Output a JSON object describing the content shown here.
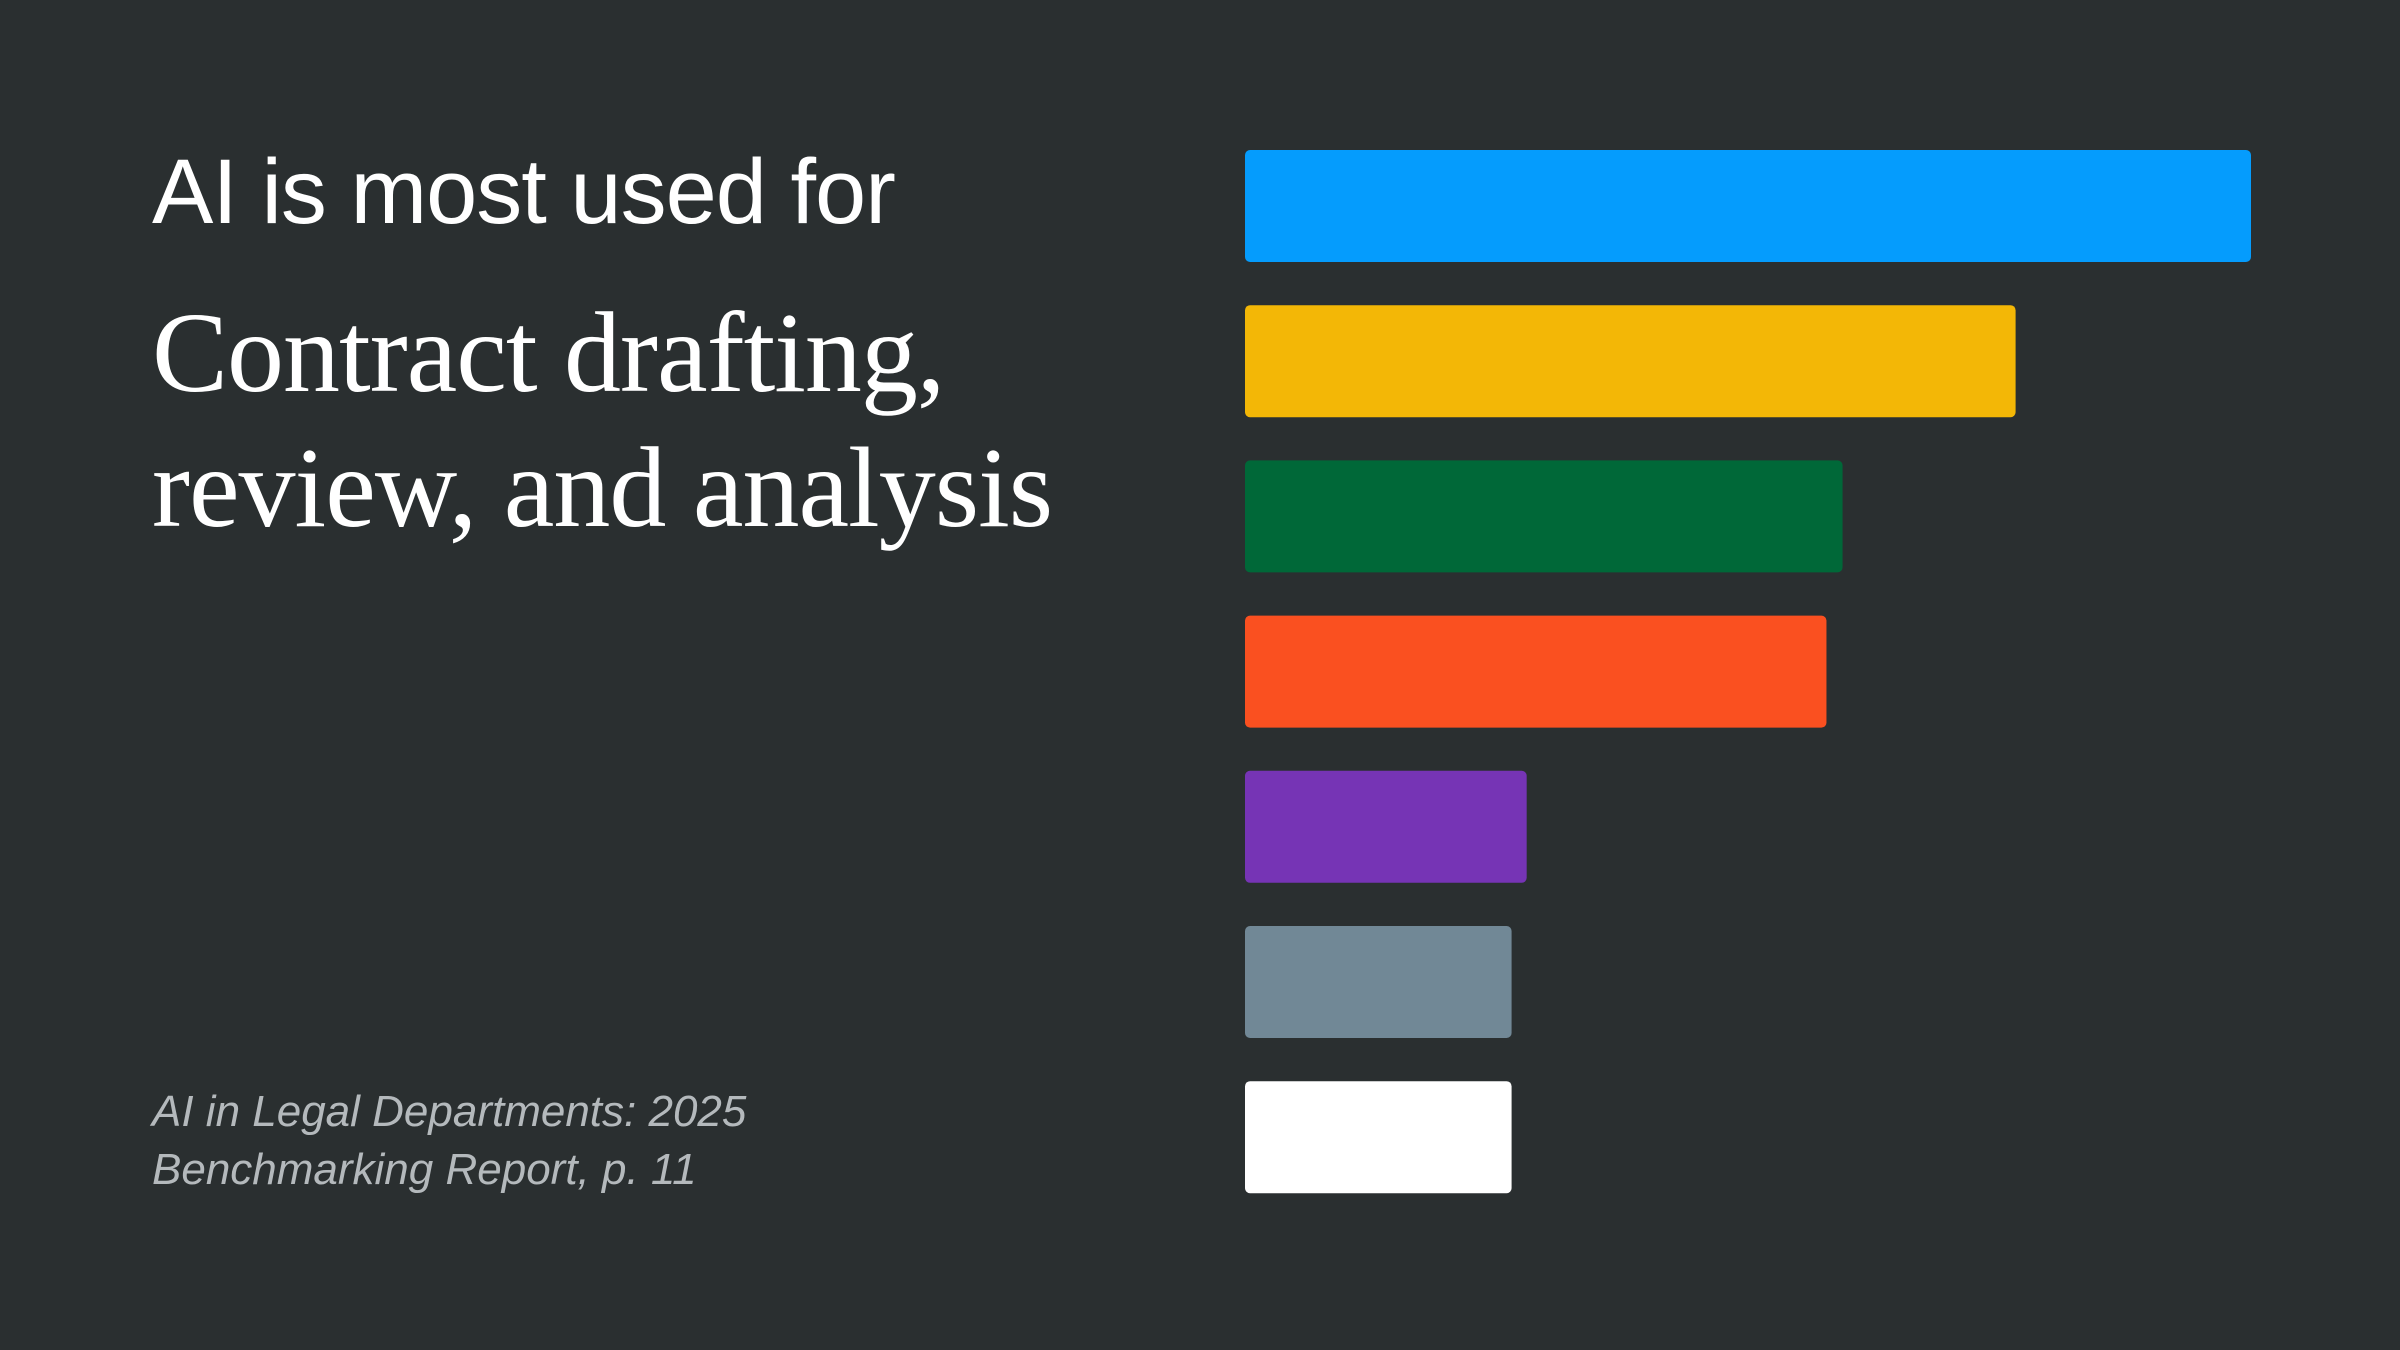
{
  "chart_data": {
    "type": "bar",
    "orientation": "horizontal",
    "title": "AI is most used for",
    "subtitle": "Contract drafting, review, and analysis",
    "source": "AI in Legal Departments: 2025 Benchmarking Report, p. 11",
    "values": [
      100,
      76.6,
      59.4,
      57.8,
      28,
      26.5,
      26.5
    ],
    "colors": [
      "#059cfd",
      "#f3b706",
      "#006838",
      "#fa5020",
      "#7634b5",
      "#718896",
      "#ffffff"
    ],
    "xlim": [
      0,
      100
    ]
  }
}
